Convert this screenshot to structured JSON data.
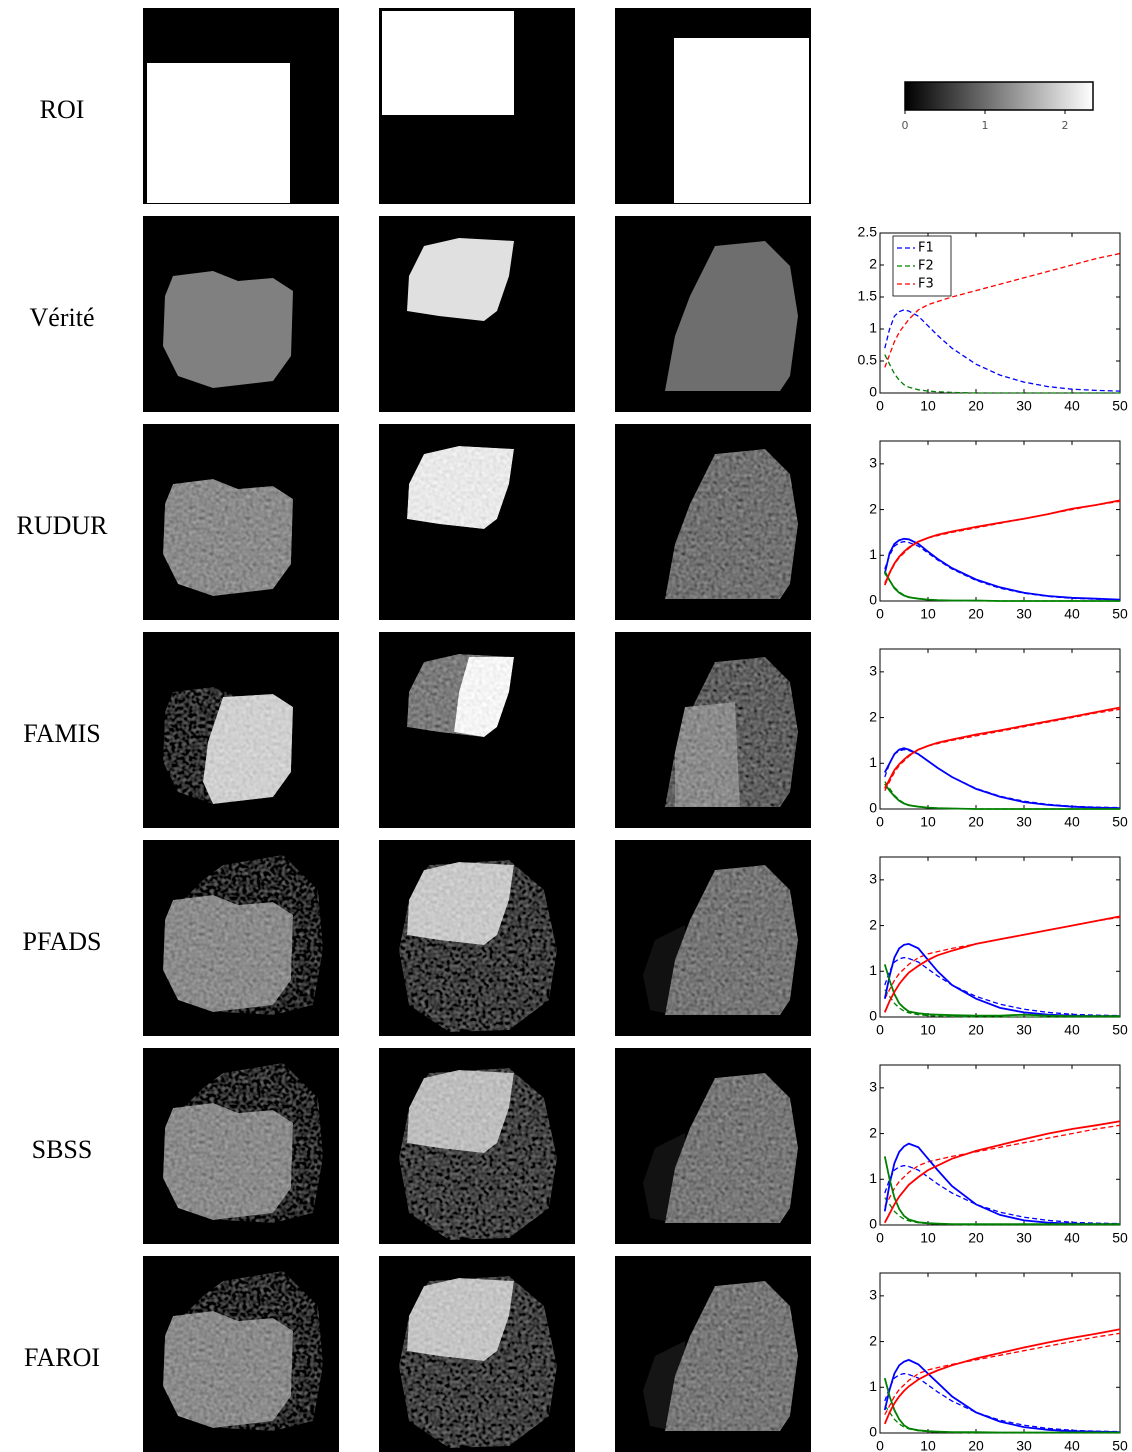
{
  "row_labels": [
    "ROI",
    "Vérité",
    "RUDUR",
    "FAMIS",
    "PFADS",
    "SBSS",
    "FAROI"
  ],
  "colorbar": {
    "lim": [
      0,
      2.35
    ],
    "ticks": [
      0,
      1,
      2
    ]
  },
  "chart_data": [
    {
      "type": "line",
      "x": [
        1,
        2,
        3,
        4,
        5,
        6,
        8,
        10,
        12,
        15,
        20,
        25,
        30,
        35,
        40,
        45,
        50
      ],
      "xlim": [
        0,
        50
      ],
      "xticks": [
        0,
        10,
        20,
        30,
        40,
        50
      ],
      "ylim": [
        0,
        2.5
      ],
      "yticks": [
        0,
        0.5,
        1,
        1.5,
        2,
        2.5
      ],
      "legend": "upper left",
      "series": [
        {
          "name": "F1",
          "color": "#0000ff",
          "dashed": true,
          "values": [
            0.7,
            1.0,
            1.2,
            1.27,
            1.3,
            1.28,
            1.2,
            1.05,
            0.9,
            0.7,
            0.45,
            0.28,
            0.17,
            0.1,
            0.06,
            0.04,
            0.03
          ]
        },
        {
          "name": "F2",
          "color": "#008000",
          "dashed": true,
          "values": [
            0.6,
            0.45,
            0.3,
            0.2,
            0.13,
            0.09,
            0.05,
            0.03,
            0.02,
            0.01,
            0,
            0,
            0,
            0,
            0,
            0,
            0
          ]
        },
        {
          "name": "F3",
          "color": "#ff0000",
          "dashed": true,
          "values": [
            0.4,
            0.6,
            0.8,
            0.95,
            1.05,
            1.15,
            1.3,
            1.38,
            1.43,
            1.5,
            1.6,
            1.7,
            1.8,
            1.9,
            2.0,
            2.1,
            2.18
          ]
        }
      ]
    },
    {
      "type": "line",
      "x": [
        1,
        2,
        3,
        4,
        5,
        6,
        8,
        10,
        12,
        15,
        20,
        25,
        30,
        35,
        40,
        45,
        50
      ],
      "xlim": [
        0,
        50
      ],
      "xticks": [
        0,
        10,
        20,
        30,
        40,
        50
      ],
      "ylim": [
        0,
        3.5
      ],
      "yticks": [
        0,
        1,
        2,
        3
      ],
      "series": [
        {
          "color": "#0000ff",
          "dashed": true,
          "values": [
            0.7,
            1.0,
            1.2,
            1.27,
            1.3,
            1.28,
            1.2,
            1.05,
            0.9,
            0.7,
            0.45,
            0.28,
            0.17,
            0.1,
            0.06,
            0.04,
            0.03
          ]
        },
        {
          "color": "#008000",
          "dashed": true,
          "values": [
            0.6,
            0.45,
            0.3,
            0.2,
            0.13,
            0.09,
            0.05,
            0.03,
            0.02,
            0.01,
            0,
            0,
            0,
            0,
            0,
            0,
            0
          ]
        },
        {
          "color": "#ff0000",
          "dashed": true,
          "values": [
            0.4,
            0.6,
            0.8,
            0.95,
            1.05,
            1.15,
            1.3,
            1.38,
            1.43,
            1.5,
            1.6,
            1.7,
            1.8,
            1.9,
            2.0,
            2.1,
            2.18
          ]
        },
        {
          "color": "#0000ff",
          "dashed": false,
          "values": [
            0.6,
            1.05,
            1.25,
            1.33,
            1.36,
            1.35,
            1.25,
            1.08,
            0.92,
            0.72,
            0.47,
            0.3,
            0.18,
            0.11,
            0.07,
            0.05,
            0.03
          ]
        },
        {
          "color": "#008000",
          "dashed": false,
          "values": [
            0.65,
            0.45,
            0.28,
            0.18,
            0.12,
            0.08,
            0.05,
            0.03,
            0.02,
            0.01,
            0.01,
            0,
            0,
            0,
            0,
            0,
            0
          ]
        },
        {
          "color": "#ff0000",
          "dashed": false,
          "values": [
            0.35,
            0.62,
            0.82,
            0.97,
            1.08,
            1.17,
            1.3,
            1.38,
            1.45,
            1.52,
            1.62,
            1.71,
            1.8,
            1.9,
            2.02,
            2.1,
            2.2
          ]
        }
      ]
    },
    {
      "type": "line",
      "x": [
        1,
        2,
        3,
        4,
        5,
        6,
        8,
        10,
        12,
        15,
        20,
        25,
        30,
        35,
        40,
        45,
        50
      ],
      "xlim": [
        0,
        50
      ],
      "xticks": [
        0,
        10,
        20,
        30,
        40,
        50
      ],
      "ylim": [
        0,
        3.5
      ],
      "yticks": [
        0,
        1,
        2,
        3
      ],
      "series": [
        {
          "color": "#0000ff",
          "dashed": true,
          "values": [
            0.7,
            1.0,
            1.2,
            1.27,
            1.3,
            1.28,
            1.2,
            1.05,
            0.9,
            0.7,
            0.45,
            0.28,
            0.17,
            0.1,
            0.06,
            0.04,
            0.03
          ]
        },
        {
          "color": "#008000",
          "dashed": true,
          "values": [
            0.6,
            0.45,
            0.3,
            0.2,
            0.13,
            0.09,
            0.05,
            0.03,
            0.02,
            0.01,
            0,
            0,
            0,
            0,
            0,
            0,
            0
          ]
        },
        {
          "color": "#ff0000",
          "dashed": true,
          "values": [
            0.4,
            0.6,
            0.8,
            0.95,
            1.05,
            1.15,
            1.3,
            1.38,
            1.43,
            1.5,
            1.6,
            1.7,
            1.8,
            1.9,
            2.0,
            2.1,
            2.18
          ]
        },
        {
          "color": "#0000ff",
          "dashed": false,
          "values": [
            0.8,
            1.0,
            1.2,
            1.3,
            1.33,
            1.3,
            1.2,
            1.05,
            0.9,
            0.7,
            0.44,
            0.27,
            0.15,
            0.09,
            0.05,
            0.03,
            0.02
          ]
        },
        {
          "color": "#008000",
          "dashed": false,
          "values": [
            0.55,
            0.4,
            0.28,
            0.18,
            0.12,
            0.08,
            0.05,
            0.03,
            0.02,
            0.01,
            0,
            0,
            0,
            0,
            0,
            0,
            0
          ]
        },
        {
          "color": "#ff0000",
          "dashed": false,
          "values": [
            0.45,
            0.65,
            0.85,
            0.98,
            1.08,
            1.17,
            1.3,
            1.38,
            1.45,
            1.52,
            1.63,
            1.72,
            1.82,
            1.92,
            2.02,
            2.12,
            2.22
          ]
        }
      ]
    },
    {
      "type": "line",
      "x": [
        1,
        2,
        3,
        4,
        5,
        6,
        8,
        10,
        12,
        15,
        20,
        25,
        30,
        35,
        40,
        45,
        50
      ],
      "xlim": [
        0,
        50
      ],
      "xticks": [
        0,
        10,
        20,
        30,
        40,
        50
      ],
      "ylim": [
        0,
        3.5
      ],
      "yticks": [
        0,
        1,
        2,
        3
      ],
      "series": [
        {
          "color": "#0000ff",
          "dashed": true,
          "values": [
            0.7,
            1.0,
            1.2,
            1.27,
            1.3,
            1.28,
            1.2,
            1.05,
            0.9,
            0.7,
            0.45,
            0.28,
            0.17,
            0.1,
            0.06,
            0.04,
            0.03
          ]
        },
        {
          "color": "#008000",
          "dashed": true,
          "values": [
            0.6,
            0.45,
            0.3,
            0.2,
            0.13,
            0.09,
            0.05,
            0.03,
            0.02,
            0.01,
            0,
            0,
            0,
            0,
            0,
            0,
            0
          ]
        },
        {
          "color": "#ff0000",
          "dashed": true,
          "values": [
            0.4,
            0.6,
            0.8,
            0.95,
            1.05,
            1.15,
            1.3,
            1.38,
            1.43,
            1.5,
            1.6,
            1.7,
            1.8,
            1.9,
            2.0,
            2.1,
            2.18
          ]
        },
        {
          "color": "#0000ff",
          "dashed": false,
          "values": [
            0.4,
            0.9,
            1.3,
            1.5,
            1.58,
            1.6,
            1.5,
            1.25,
            1.0,
            0.7,
            0.4,
            0.2,
            0.1,
            0.05,
            0.03,
            0.02,
            0.02
          ]
        },
        {
          "color": "#008000",
          "dashed": false,
          "values": [
            1.15,
            0.8,
            0.5,
            0.3,
            0.2,
            0.12,
            0.08,
            0.06,
            0.05,
            0.04,
            0.03,
            0.03,
            0.05,
            0.03,
            0.02,
            0.02,
            0.02
          ]
        },
        {
          "color": "#ff0000",
          "dashed": false,
          "values": [
            0.1,
            0.35,
            0.55,
            0.72,
            0.85,
            0.97,
            1.12,
            1.25,
            1.35,
            1.45,
            1.6,
            1.7,
            1.8,
            1.9,
            2.0,
            2.1,
            2.2
          ]
        }
      ]
    },
    {
      "type": "line",
      "x": [
        1,
        2,
        3,
        4,
        5,
        6,
        8,
        10,
        12,
        15,
        20,
        25,
        30,
        35,
        40,
        45,
        50
      ],
      "xlim": [
        0,
        50
      ],
      "xticks": [
        0,
        10,
        20,
        30,
        40,
        50
      ],
      "ylim": [
        0,
        3.5
      ],
      "yticks": [
        0,
        1,
        2,
        3
      ],
      "series": [
        {
          "color": "#0000ff",
          "dashed": true,
          "values": [
            0.7,
            1.0,
            1.2,
            1.27,
            1.3,
            1.28,
            1.2,
            1.05,
            0.9,
            0.7,
            0.45,
            0.28,
            0.17,
            0.1,
            0.06,
            0.04,
            0.03
          ]
        },
        {
          "color": "#008000",
          "dashed": true,
          "values": [
            0.6,
            0.45,
            0.3,
            0.2,
            0.13,
            0.09,
            0.05,
            0.03,
            0.02,
            0.01,
            0,
            0,
            0,
            0,
            0,
            0,
            0
          ]
        },
        {
          "color": "#ff0000",
          "dashed": true,
          "values": [
            0.4,
            0.6,
            0.8,
            0.95,
            1.05,
            1.15,
            1.3,
            1.38,
            1.43,
            1.5,
            1.6,
            1.7,
            1.8,
            1.9,
            2.0,
            2.1,
            2.18
          ]
        },
        {
          "color": "#0000ff",
          "dashed": false,
          "values": [
            0.3,
            0.9,
            1.35,
            1.6,
            1.72,
            1.78,
            1.7,
            1.45,
            1.2,
            0.85,
            0.45,
            0.22,
            0.1,
            0.05,
            0.03,
            0.02,
            0.02
          ]
        },
        {
          "color": "#008000",
          "dashed": false,
          "values": [
            1.5,
            1.0,
            0.6,
            0.35,
            0.2,
            0.12,
            0.06,
            0.04,
            0.03,
            0.02,
            0.02,
            0.02,
            0.02,
            0.02,
            0.02,
            0.02,
            0.02
          ]
        },
        {
          "color": "#ff0000",
          "dashed": false,
          "values": [
            0.05,
            0.25,
            0.45,
            0.62,
            0.75,
            0.88,
            1.05,
            1.2,
            1.3,
            1.45,
            1.62,
            1.75,
            1.88,
            2.0,
            2.1,
            2.18,
            2.27
          ]
        }
      ]
    },
    {
      "type": "line",
      "x": [
        1,
        2,
        3,
        4,
        5,
        6,
        8,
        10,
        12,
        15,
        20,
        25,
        30,
        35,
        40,
        45,
        50
      ],
      "xlim": [
        0,
        50
      ],
      "xticks": [
        0,
        10,
        20,
        30,
        40,
        50
      ],
      "ylim": [
        0,
        3.5
      ],
      "yticks": [
        0,
        1,
        2,
        3
      ],
      "series": [
        {
          "color": "#0000ff",
          "dashed": true,
          "values": [
            0.7,
            1.0,
            1.2,
            1.27,
            1.3,
            1.28,
            1.2,
            1.05,
            0.9,
            0.7,
            0.45,
            0.28,
            0.17,
            0.1,
            0.06,
            0.04,
            0.03
          ]
        },
        {
          "color": "#008000",
          "dashed": true,
          "values": [
            0.6,
            0.45,
            0.3,
            0.2,
            0.13,
            0.09,
            0.05,
            0.03,
            0.02,
            0.01,
            0,
            0,
            0,
            0,
            0,
            0,
            0
          ]
        },
        {
          "color": "#ff0000",
          "dashed": true,
          "values": [
            0.4,
            0.6,
            0.8,
            0.95,
            1.05,
            1.15,
            1.3,
            1.38,
            1.43,
            1.5,
            1.6,
            1.7,
            1.8,
            1.9,
            2.0,
            2.1,
            2.18
          ]
        },
        {
          "color": "#0000ff",
          "dashed": false,
          "values": [
            0.5,
            0.95,
            1.3,
            1.48,
            1.56,
            1.6,
            1.5,
            1.3,
            1.1,
            0.8,
            0.45,
            0.25,
            0.13,
            0.07,
            0.04,
            0.03,
            0.02
          ]
        },
        {
          "color": "#008000",
          "dashed": false,
          "values": [
            1.2,
            0.8,
            0.5,
            0.3,
            0.17,
            0.1,
            0.06,
            0.04,
            0.03,
            0.02,
            0.02,
            0.01,
            0.01,
            0.01,
            0.01,
            0.01,
            0.01
          ]
        },
        {
          "color": "#ff0000",
          "dashed": false,
          "values": [
            0.2,
            0.45,
            0.65,
            0.8,
            0.92,
            1.02,
            1.17,
            1.28,
            1.37,
            1.48,
            1.63,
            1.75,
            1.87,
            1.98,
            2.08,
            2.17,
            2.27
          ]
        }
      ]
    }
  ]
}
